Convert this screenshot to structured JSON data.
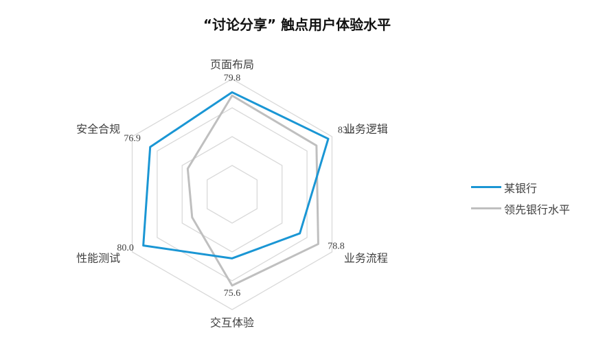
{
  "chart_data": {
    "type": "radar",
    "title": "“讨论分享” 触点用户体验水平",
    "axes": [
      "页面布局",
      "业务逻辑",
      "业务流程",
      "交互体验",
      "性能测试",
      "安全合规"
    ],
    "series": [
      {
        "name": "某银行",
        "values": [
          79.8,
          83.3,
          70.5,
          65.0,
          80.0,
          76.9
        ],
        "color": "#1a96d4"
      },
      {
        "name": "领先银行水平",
        "values": [
          78.5,
          78.0,
          78.8,
          75.6,
          58.0,
          60.0
        ],
        "color": "#bfbfbf"
      }
    ],
    "data_labels": [
      {
        "axis": "页面布局",
        "text": "79.8"
      },
      {
        "axis": "业务逻辑",
        "text": "83.3"
      },
      {
        "axis": "业务流程",
        "text": "78.8"
      },
      {
        "axis": "交互体验",
        "text": "75.6"
      },
      {
        "axis": "性能测试",
        "text": "80.0"
      },
      {
        "axis": "安全合规",
        "text": "76.9"
      }
    ],
    "rlim": [
      40,
      85
    ],
    "grid": true,
    "legend_position": "right",
    "gridline_color": "#d9d9d9"
  }
}
